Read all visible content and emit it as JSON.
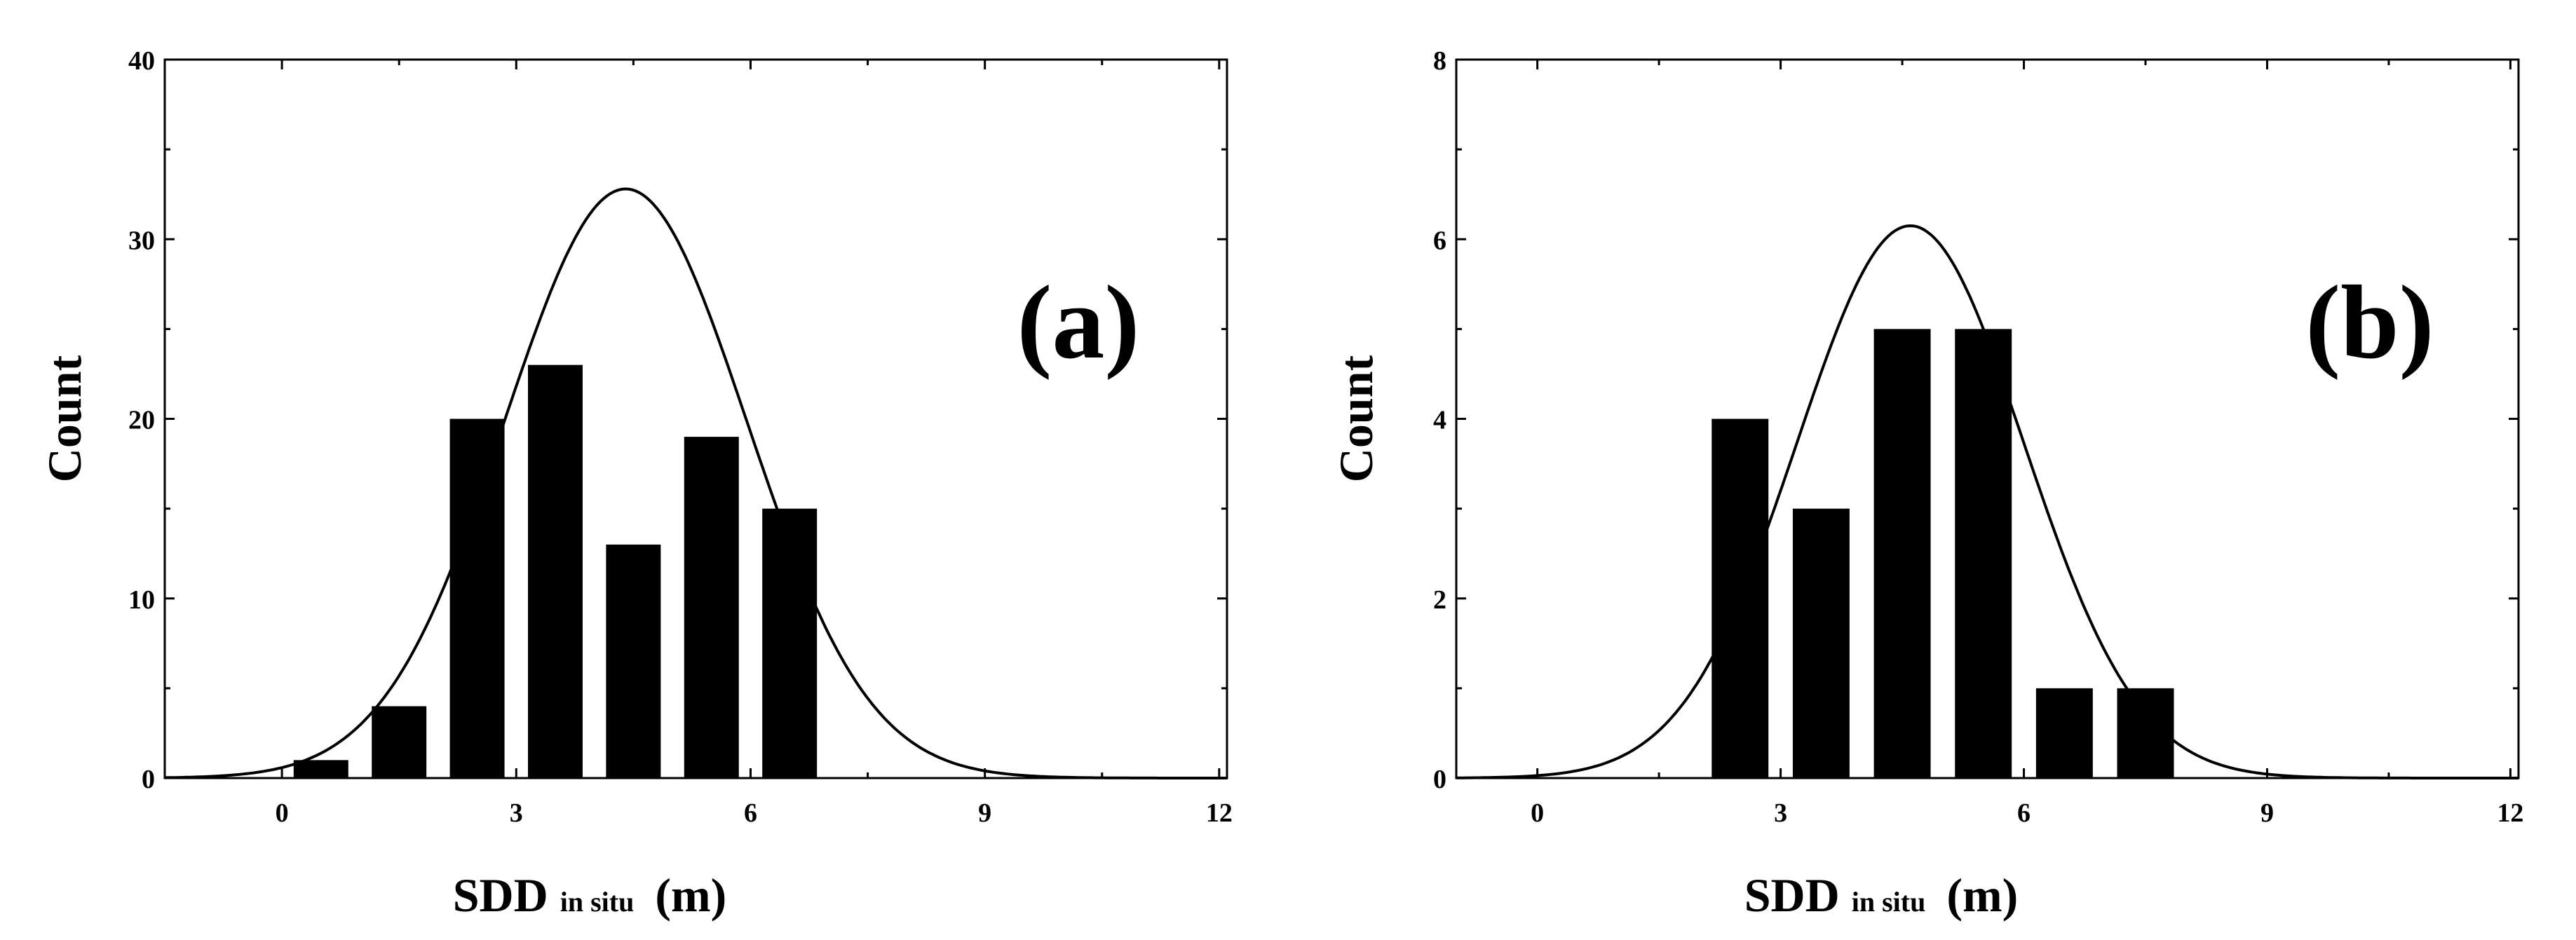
{
  "chart_data": [
    {
      "type": "bar",
      "panel_label": "(a)",
      "xlabel": {
        "main": "SDD",
        "sub": "in situ",
        "unit": "(m)"
      },
      "ylabel": "Count",
      "xlim": [
        -1.5,
        12.1
      ],
      "ylim": [
        0,
        40
      ],
      "xticks": [
        "0",
        "3",
        "6",
        "9",
        "12"
      ],
      "yticks": [
        "0",
        "10",
        "20",
        "30",
        "40"
      ],
      "bar_width": 0.7,
      "series": [
        {
          "values": [
            {
              "x": 0.5,
              "y": 1
            },
            {
              "x": 1.5,
              "y": 4
            },
            {
              "x": 2.5,
              "y": 20
            },
            {
              "x": 3.5,
              "y": 23
            },
            {
              "x": 4.5,
              "y": 13
            },
            {
              "x": 5.5,
              "y": 19
            },
            {
              "x": 6.5,
              "y": 15
            }
          ]
        }
      ],
      "fit_curve": {
        "type": "normal",
        "mean": 4.4,
        "sd": 1.55,
        "peak": 32.8
      }
    },
    {
      "type": "bar",
      "panel_label": "(b)",
      "xlabel": {
        "main": "SDD",
        "sub": "in situ",
        "unit": "(m)"
      },
      "ylabel": "Count",
      "xlim": [
        -1.0,
        12.1
      ],
      "ylim": [
        0,
        8
      ],
      "xticks": [
        "0",
        "3",
        "6",
        "9",
        "12"
      ],
      "yticks": [
        "0",
        "2",
        "4",
        "6",
        "8"
      ],
      "bar_width": 0.7,
      "series": [
        {
          "values": [
            {
              "x": 2.5,
              "y": 4
            },
            {
              "x": 3.5,
              "y": 3
            },
            {
              "x": 4.5,
              "y": 5
            },
            {
              "x": 5.5,
              "y": 5
            },
            {
              "x": 6.5,
              "y": 1
            },
            {
              "x": 7.5,
              "y": 1
            }
          ]
        }
      ],
      "fit_curve": {
        "type": "normal",
        "mean": 4.6,
        "sd": 1.4,
        "peak": 6.15
      }
    }
  ]
}
